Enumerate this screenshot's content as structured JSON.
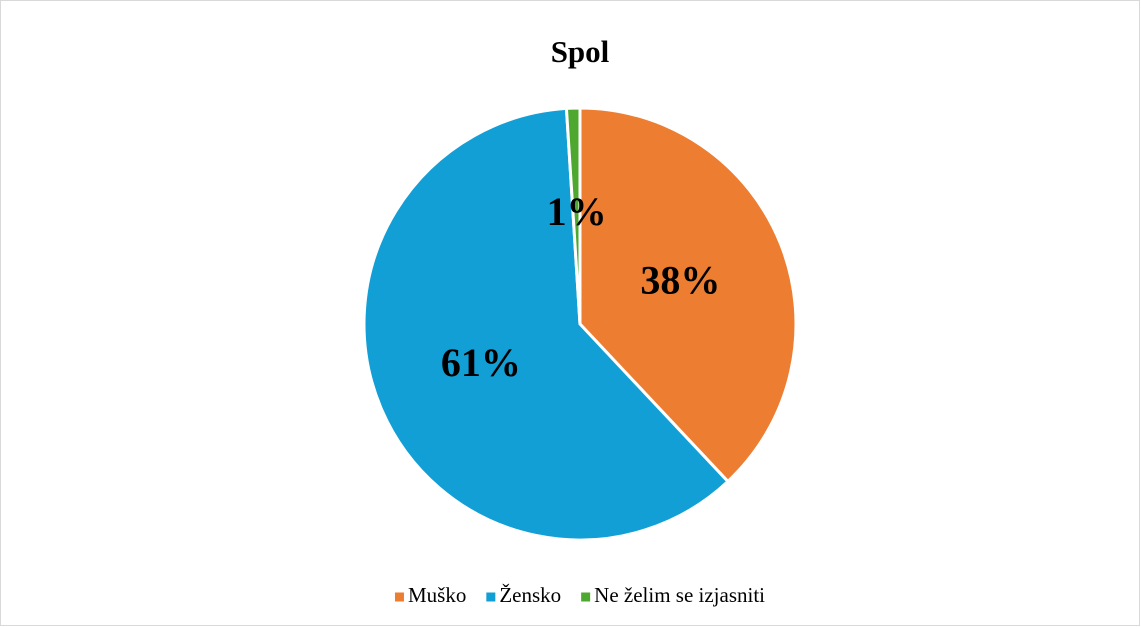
{
  "chart_data": {
    "type": "pie",
    "title": "Spol",
    "categories": [
      "Muško",
      "Žensko",
      "Ne želim se izjasniti"
    ],
    "values": [
      38,
      61,
      1
    ],
    "value_labels": [
      "38%",
      "61%",
      "1%"
    ],
    "colors": [
      "#ED7D31",
      "#129FD6",
      "#4EA72E"
    ],
    "legend": "bottom"
  }
}
